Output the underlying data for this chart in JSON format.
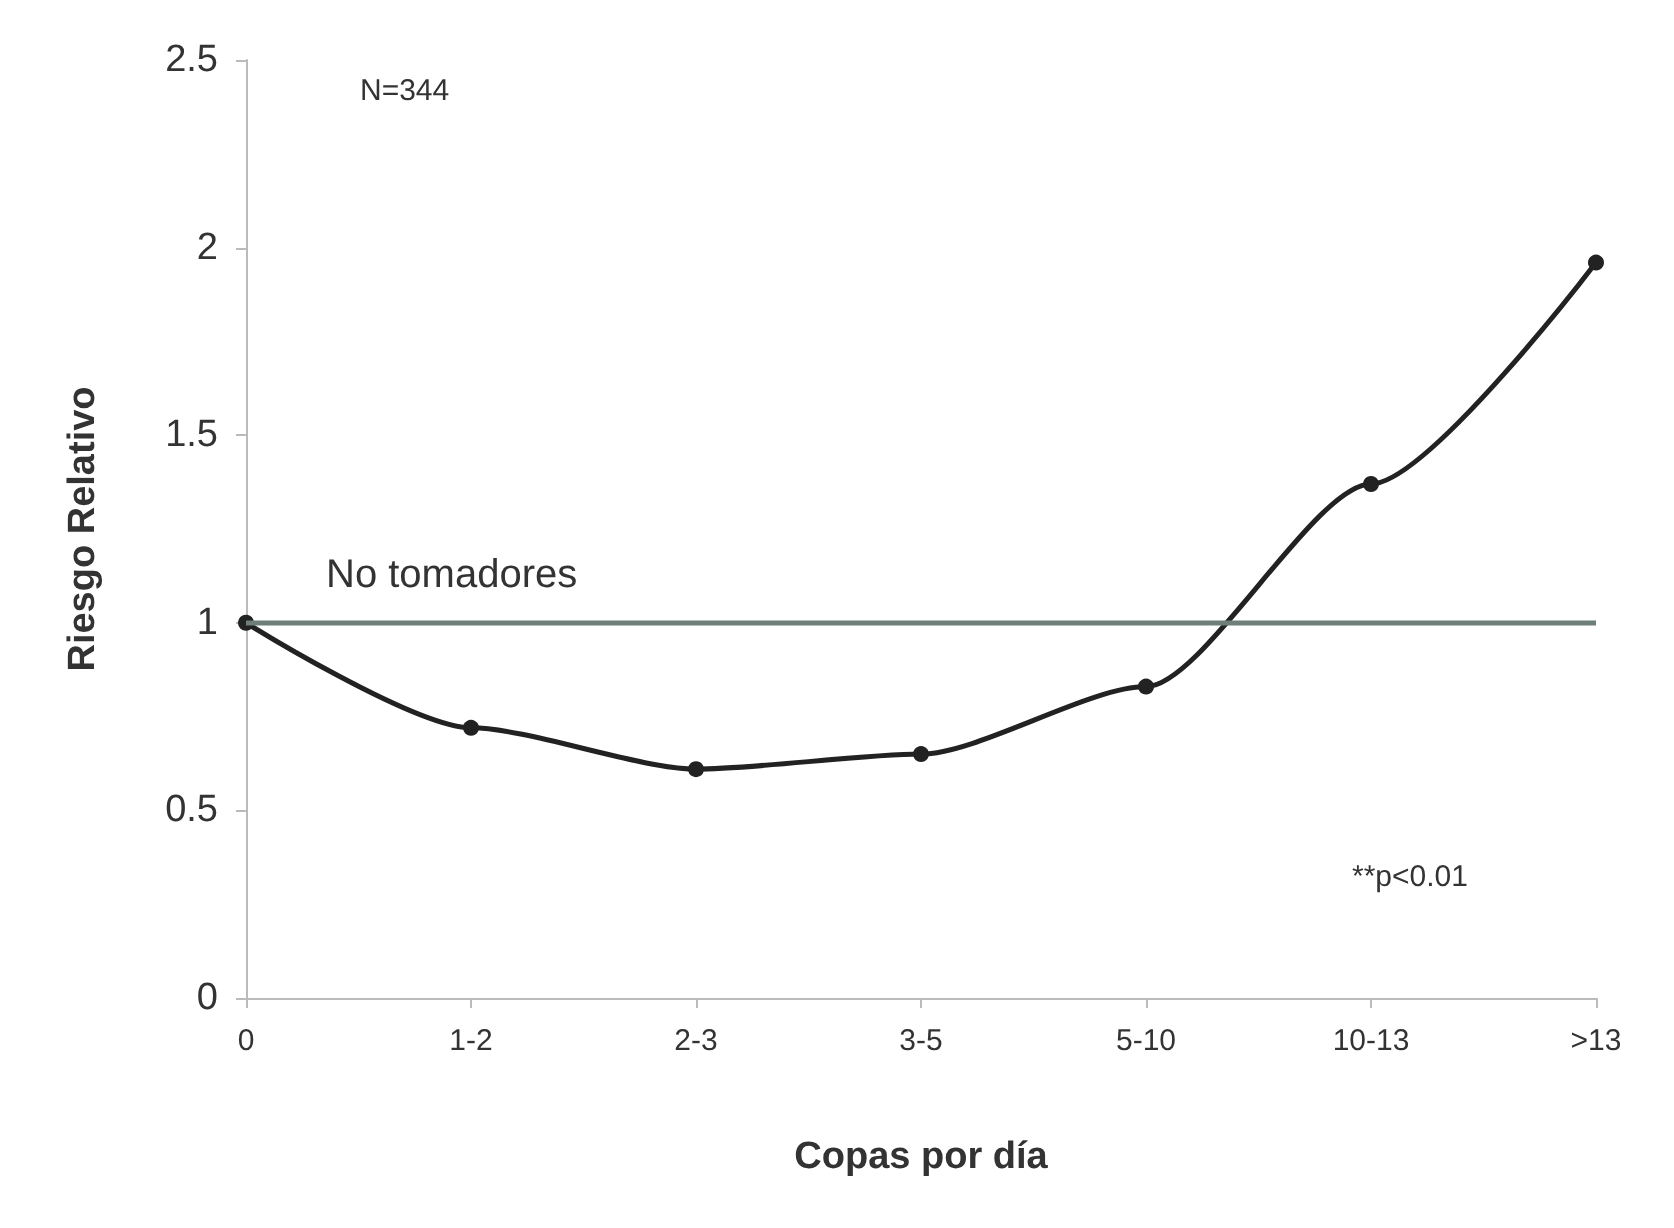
{
  "chart_data": {
    "type": "line",
    "xlabel": "Copas por día",
    "ylabel": "Riesgo Relativo",
    "categories": [
      "0",
      "1-2",
      "2-3",
      "3-5",
      "5-10",
      "10-13",
      ">13"
    ],
    "series": [
      {
        "color": "#222222",
        "values": [
          1,
          0.72,
          0.61,
          0.65,
          0.83,
          1.37,
          1.96
        ]
      }
    ],
    "ylim": [
      0,
      2.5
    ],
    "yticks": [
      0,
      0.5,
      1,
      1.5,
      2,
      2.5
    ],
    "grid": false,
    "marker": "circle",
    "line_style": "solid",
    "ref_lines": [
      {
        "axis": "y",
        "value": 1,
        "label": "No tomadores",
        "color": "#6e7f7a"
      }
    ],
    "annotations": [
      "N=344",
      "**p<0.01"
    ]
  }
}
